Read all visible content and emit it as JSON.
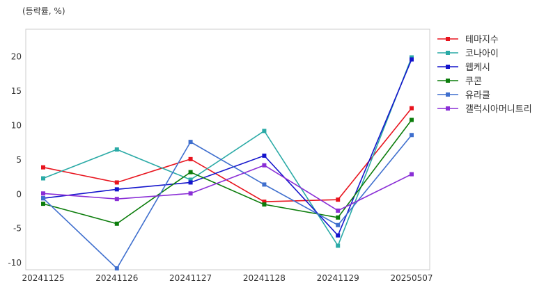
{
  "chart_data": {
    "type": "line",
    "unit_label": "(등락률, %)",
    "categories": [
      "20241125",
      "20241126",
      "20241127",
      "20241128",
      "20241129",
      "20250507"
    ],
    "ylim": [
      -11,
      24
    ],
    "yticks": [
      -10,
      -5,
      0,
      5,
      10,
      15,
      20
    ],
    "grid": true,
    "legend_position": "right",
    "series": [
      {
        "name": "테마지수",
        "color": "#e8141e",
        "values": [
          3.9,
          1.7,
          5.1,
          -1.1,
          -0.8,
          12.5
        ]
      },
      {
        "name": "코나아이",
        "color": "#2aaaa6",
        "values": [
          2.3,
          6.5,
          2.1,
          9.2,
          -7.5,
          19.9
        ]
      },
      {
        "name": "웹케시",
        "color": "#1414cc",
        "values": [
          -0.6,
          0.7,
          1.7,
          5.6,
          -6.0,
          19.6
        ]
      },
      {
        "name": "쿠콘",
        "color": "#0c7d0c",
        "values": [
          -1.4,
          -4.3,
          3.2,
          -1.5,
          -3.4,
          10.8
        ]
      },
      {
        "name": "유라클",
        "color": "#3f6fce",
        "values": [
          -0.6,
          -10.8,
          7.6,
          1.4,
          -4.5,
          8.6
        ]
      },
      {
        "name": "갤럭시아머니트리",
        "color": "#8a2ed6",
        "values": [
          0.1,
          -0.7,
          0.1,
          4.2,
          -2.4,
          2.9
        ]
      }
    ]
  }
}
